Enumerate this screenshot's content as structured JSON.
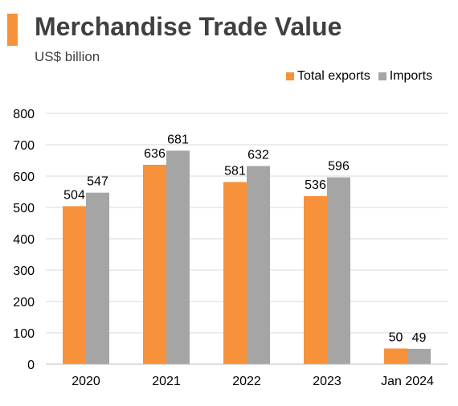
{
  "header": {
    "title": "Merchandise Trade Value",
    "subtitle": "US$ billion"
  },
  "colors": {
    "accent": "#f7923a",
    "exports": "#f7923a",
    "imports": "#a5a5a5",
    "grid": "#d9d9d9",
    "axis": "#bfbfbf"
  },
  "legend": {
    "exports_label": "Total exports",
    "imports_label": "Imports"
  },
  "chart_data": {
    "type": "bar",
    "title": "Merchandise Trade Value",
    "subtitle": "US$ billion",
    "xlabel": "",
    "ylabel": "",
    "categories": [
      "2020",
      "2021",
      "2022",
      "2023",
      "Jan 2024"
    ],
    "series": [
      {
        "name": "Total exports",
        "values": [
          504,
          636,
          581,
          536,
          50
        ],
        "color": "#f7923a"
      },
      {
        "name": "Imports",
        "values": [
          547,
          681,
          632,
          596,
          49
        ],
        "color": "#a5a5a5"
      }
    ],
    "ylim": [
      0,
      800
    ],
    "yticks": [
      0,
      100,
      200,
      300,
      400,
      500,
      600,
      700,
      800
    ],
    "grid": true,
    "legend_position": "top-right",
    "data_labels": true
  }
}
